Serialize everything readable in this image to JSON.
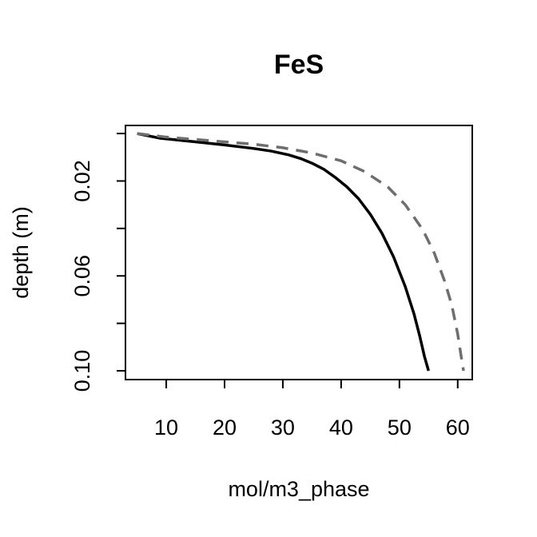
{
  "chart_data": {
    "type": "line",
    "title": "FeS",
    "xlabel": "mol/m3_phase",
    "ylabel": "depth (m)",
    "xlim": [
      3,
      62.5
    ],
    "ylim": [
      0.1037,
      -0.0034
    ],
    "y_reversed": true,
    "grid": false,
    "x_ticks": [
      10,
      20,
      30,
      40,
      50,
      60
    ],
    "x_tick_labels": [
      "10",
      "20",
      "30",
      "40",
      "50",
      "60"
    ],
    "y_ticks": [
      0.0,
      0.02,
      0.04,
      0.06,
      0.08,
      0.1
    ],
    "y_tick_labels": [
      "",
      "0.02",
      "",
      "0.06",
      "",
      "0.10"
    ],
    "series": [
      {
        "color": "#000000",
        "style": "solid",
        "points": [
          [
            5.0,
            0.0
          ],
          [
            9.0,
            0.002
          ],
          [
            15.0,
            0.0035
          ],
          [
            20.0,
            0.0048
          ],
          [
            25.0,
            0.0063
          ],
          [
            28.0,
            0.0074
          ],
          [
            31.0,
            0.009
          ],
          [
            33.0,
            0.0105
          ],
          [
            35.0,
            0.0125
          ],
          [
            37.0,
            0.015
          ],
          [
            39.0,
            0.0185
          ],
          [
            41.0,
            0.0225
          ],
          [
            43.0,
            0.0275
          ],
          [
            45.0,
            0.034
          ],
          [
            47.0,
            0.042
          ],
          [
            49.0,
            0.052
          ],
          [
            51.0,
            0.0645
          ],
          [
            52.5,
            0.076
          ],
          [
            53.5,
            0.0855
          ],
          [
            54.3,
            0.094
          ],
          [
            55.0,
            0.1
          ]
        ]
      },
      {
        "color": "#6e6e6e",
        "style": "dashed",
        "points": [
          [
            5.0,
            0.0
          ],
          [
            10.0,
            0.0015
          ],
          [
            15.0,
            0.0025
          ],
          [
            20.0,
            0.0035
          ],
          [
            25.0,
            0.0045
          ],
          [
            30.0,
            0.006
          ],
          [
            35.0,
            0.0082
          ],
          [
            40.0,
            0.0115
          ],
          [
            44.0,
            0.016
          ],
          [
            48.0,
            0.0225
          ],
          [
            51.0,
            0.03
          ],
          [
            54.0,
            0.0405
          ],
          [
            56.0,
            0.0505
          ],
          [
            57.8,
            0.0625
          ],
          [
            59.0,
            0.0725
          ],
          [
            60.0,
            0.0845
          ],
          [
            60.6,
            0.094
          ],
          [
            61.0,
            0.1
          ]
        ]
      }
    ]
  }
}
